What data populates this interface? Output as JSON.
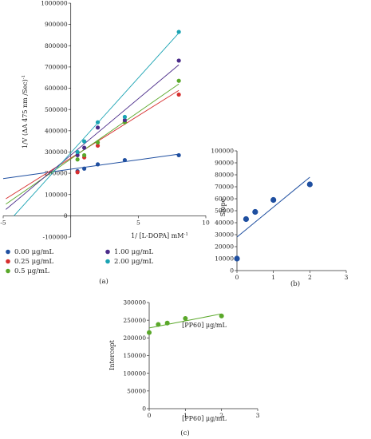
{
  "chart_data": [
    {
      "panel_label": "(a)",
      "type": "scatter",
      "xlabel": "1/ [L-DOPA] mM",
      "xlabel_sup": "-1",
      "ylabel": "1/V (ΔA 475 nm /Sec)",
      "ylabel_sup": "-1",
      "xlim": [
        -5,
        10
      ],
      "ylim": [
        -100000,
        1000000
      ],
      "xticks": [
        -5,
        0,
        5,
        10
      ],
      "yticks": [
        -100000,
        0,
        100000,
        200000,
        300000,
        400000,
        500000,
        600000,
        700000,
        800000,
        900000,
        1000000
      ],
      "legend_placement": "bottom",
      "fit_lines": true,
      "grid": false,
      "series": [
        {
          "name": "0.00 μg/mL",
          "color": "#1f4fa0",
          "x": [
            0.5,
            1,
            2,
            4,
            8
          ],
          "y": [
            210000,
            222000,
            242000,
            262000,
            285000
          ],
          "line_x": [
            -5,
            8
          ],
          "line_y": [
            175000,
            290000
          ]
        },
        {
          "name": "0.25 μg/mL",
          "color": "#d62e2e",
          "x": [
            0.5,
            1,
            2,
            4,
            8
          ],
          "y": [
            205000,
            275000,
            330000,
            440000,
            570000
          ],
          "line_x": [
            -4.8,
            8
          ],
          "line_y": [
            80000,
            590000
          ]
        },
        {
          "name": "0.5 μg/mL",
          "color": "#5aa82a",
          "x": [
            0.5,
            1,
            2,
            4,
            8
          ],
          "y": [
            265000,
            285000,
            345000,
            440000,
            635000
          ],
          "line_x": [
            -4.8,
            8
          ],
          "line_y": [
            55000,
            620000
          ]
        },
        {
          "name": "1.00 μg/mL",
          "color": "#4b2c8a",
          "x": [
            0.5,
            1,
            2,
            4,
            8
          ],
          "y": [
            285000,
            320000,
            415000,
            450000,
            730000
          ],
          "line_x": [
            -4.8,
            8
          ],
          "line_y": [
            30000,
            710000
          ]
        },
        {
          "name": "2.00 μg/mL",
          "color": "#1aa3b3",
          "x": [
            0.5,
            1,
            2,
            4,
            8
          ],
          "y": [
            300000,
            350000,
            440000,
            465000,
            865000
          ],
          "line_x": [
            -4.2,
            8
          ],
          "line_y": [
            0,
            860000
          ]
        }
      ]
    },
    {
      "panel_label": "(b)",
      "type": "scatter",
      "xlabel": "",
      "ylabel": "Slope",
      "xlim": [
        0,
        3
      ],
      "ylim": [
        0,
        100000
      ],
      "xticks": [
        0,
        1,
        2,
        3
      ],
      "yticks": [
        0,
        10000,
        20000,
        30000,
        40000,
        50000,
        60000,
        70000,
        80000,
        90000,
        100000
      ],
      "color": "#1f4fa0",
      "x": [
        0,
        0.25,
        0.5,
        1,
        2
      ],
      "y": [
        10000,
        43000,
        49000,
        59000,
        72000
      ],
      "fit_line": {
        "x": [
          0,
          2
        ],
        "y": [
          28000,
          78000
        ]
      }
    },
    {
      "panel_label": "(c)",
      "type": "scatter",
      "title": "[PP60] μg/mL",
      "xlabel": "[PP60] μg/mL",
      "ylabel": "Intercept",
      "xlim": [
        0,
        3
      ],
      "ylim": [
        0,
        300000
      ],
      "xticks": [
        0,
        1,
        2,
        3
      ],
      "yticks": [
        0,
        50000,
        100000,
        150000,
        200000,
        250000,
        300000
      ],
      "color": "#5aa82a",
      "x": [
        0,
        0.25,
        0.5,
        1,
        2
      ],
      "y": [
        215000,
        238000,
        242000,
        255000,
        262000
      ],
      "fit_line": {
        "x": [
          0,
          2
        ],
        "y": [
          228000,
          268000
        ]
      }
    }
  ]
}
